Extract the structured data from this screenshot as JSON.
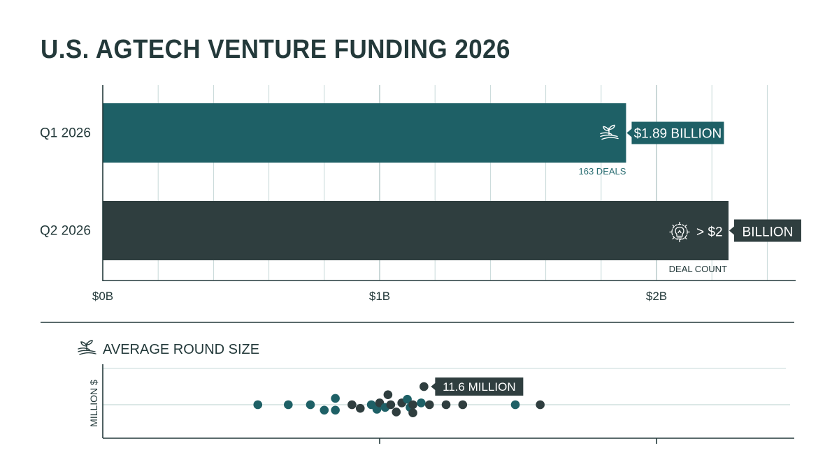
{
  "title": "U.S. AGTECH VENTURE FUNDING 2026",
  "colors": {
    "teal": "#1e6066",
    "dark": "#2f3e3f",
    "grid": "#c7d9d8",
    "axis": "#23393a",
    "text": "#23393a"
  },
  "chart_data": [
    {
      "type": "bar",
      "orientation": "horizontal",
      "categories": [
        "Q1 2026",
        "Q2 2026"
      ],
      "values": [
        1.89,
        2.26
      ],
      "xlim": [
        0,
        2.5
      ],
      "xticks": [
        {
          "value": 0,
          "label": "$0B"
        },
        {
          "value": 1,
          "label": "$1B"
        },
        {
          "value": 2,
          "label": "$2B"
        }
      ],
      "bar_colors": [
        "#1e6066",
        "#2f3e3f"
      ],
      "value_labels": [
        "$1.89 BILLION",
        "BILLION"
      ],
      "value_prefix_labels": [
        "",
        "> $2"
      ],
      "sub_labels": [
        "163 DEALS",
        "DEAL COUNT"
      ],
      "icons": [
        "sprout-field-icon",
        "lightbulb-gear-icon"
      ],
      "grid": true
    },
    {
      "type": "scatter",
      "title": "AVERAGE ROUND SIZE",
      "title_icon": "sprout-field-icon",
      "ylabel": "MILLION $",
      "annotation": "11.6 MILLION",
      "annotated_index": 0,
      "xlim": [
        0,
        2.5
      ],
      "points": [
        {
          "x": 1.16,
          "y": 1.0,
          "color": "dark"
        },
        {
          "x": 0.56,
          "y": 0.0,
          "color": "teal"
        },
        {
          "x": 0.67,
          "y": 0.0,
          "color": "teal"
        },
        {
          "x": 0.75,
          "y": 0.0,
          "color": "teal"
        },
        {
          "x": 0.8,
          "y": -0.3,
          "color": "teal"
        },
        {
          "x": 0.84,
          "y": -0.3,
          "color": "teal"
        },
        {
          "x": 0.84,
          "y": 0.35,
          "color": "teal"
        },
        {
          "x": 0.9,
          "y": 0.0,
          "color": "dark"
        },
        {
          "x": 0.93,
          "y": -0.2,
          "color": "dark"
        },
        {
          "x": 0.97,
          "y": 0.0,
          "color": "teal"
        },
        {
          "x": 0.99,
          "y": -0.25,
          "color": "teal"
        },
        {
          "x": 1.0,
          "y": 0.1,
          "color": "dark"
        },
        {
          "x": 1.02,
          "y": -0.15,
          "color": "teal"
        },
        {
          "x": 1.03,
          "y": 0.55,
          "color": "dark"
        },
        {
          "x": 1.04,
          "y": 0.0,
          "color": "dark"
        },
        {
          "x": 1.06,
          "y": -0.4,
          "color": "dark"
        },
        {
          "x": 1.08,
          "y": 0.1,
          "color": "dark"
        },
        {
          "x": 1.1,
          "y": 0.3,
          "color": "teal"
        },
        {
          "x": 1.11,
          "y": -0.15,
          "color": "teal"
        },
        {
          "x": 1.12,
          "y": -0.45,
          "color": "dark"
        },
        {
          "x": 1.12,
          "y": 0.0,
          "color": "dark"
        },
        {
          "x": 1.15,
          "y": 0.1,
          "color": "teal"
        },
        {
          "x": 1.18,
          "y": 0.0,
          "color": "dark"
        },
        {
          "x": 1.24,
          "y": 0.0,
          "color": "dark"
        },
        {
          "x": 1.3,
          "y": 0.0,
          "color": "dark"
        },
        {
          "x": 1.49,
          "y": 0.0,
          "color": "teal"
        },
        {
          "x": 1.58,
          "y": 0.0,
          "color": "dark"
        }
      ]
    }
  ]
}
